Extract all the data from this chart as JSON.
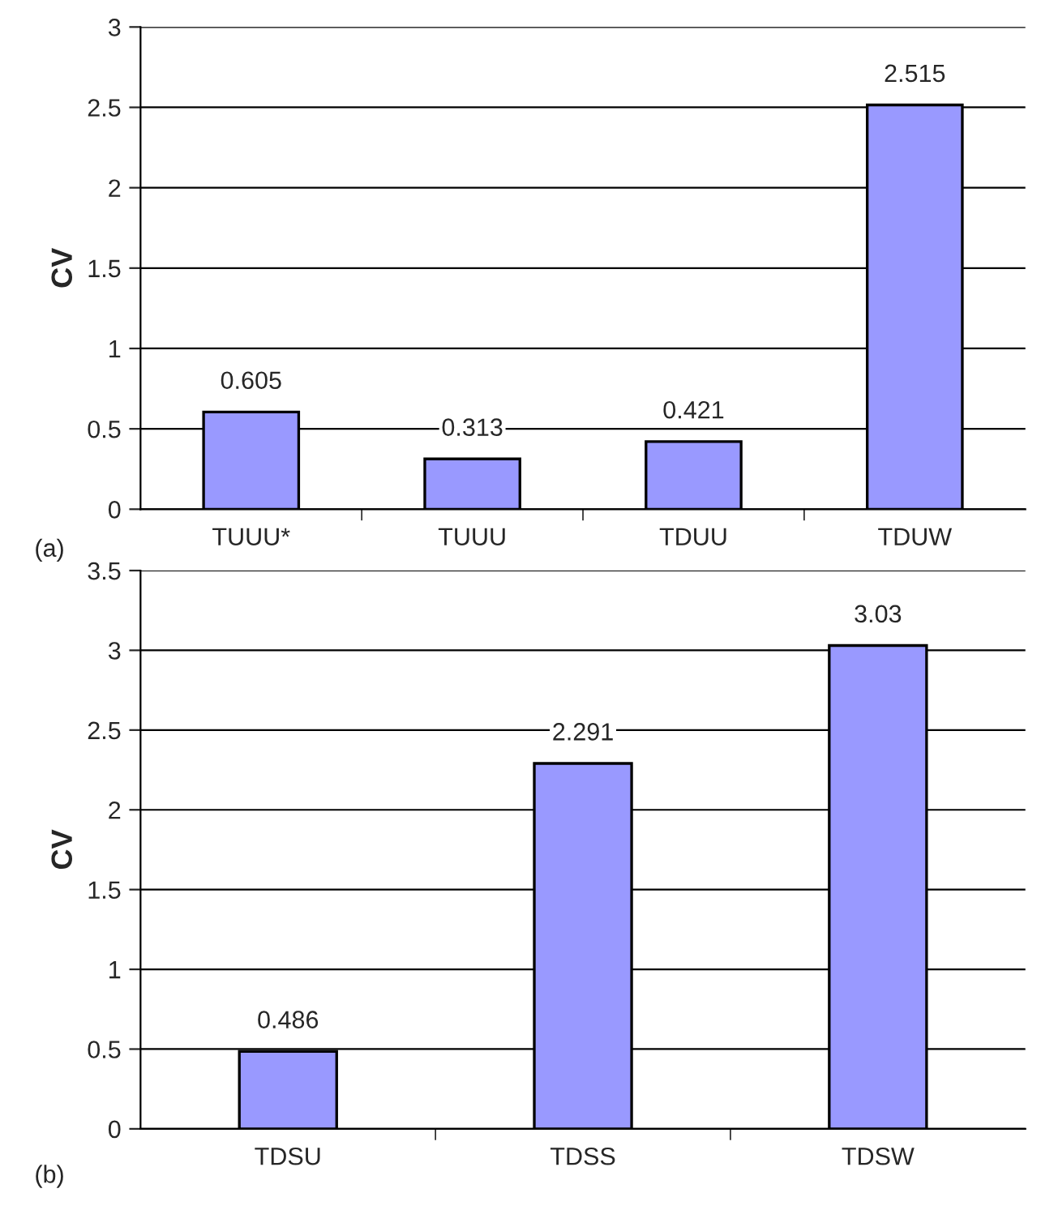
{
  "chart_data": [
    {
      "type": "bar",
      "ylabel": "CV",
      "categories": [
        "TUUU*",
        "TUUU",
        "TDUU",
        "TDUW"
      ],
      "values": [
        0.605,
        0.313,
        0.421,
        2.515
      ],
      "color": "#9999ff",
      "ylim": [
        0,
        3
      ],
      "yticks": [
        0,
        0.5,
        1,
        1.5,
        2,
        2.5,
        3
      ],
      "grid": "y",
      "data_labels": true,
      "legend": false,
      "annotations": [
        "(a)"
      ]
    },
    {
      "type": "bar",
      "ylabel": "CV",
      "categories": [
        "TDSU",
        "TDSS",
        "TDSW"
      ],
      "values": [
        0.486,
        2.291,
        3.03
      ],
      "color": "#9999ff",
      "ylim": [
        0,
        3.5
      ],
      "yticks": [
        0,
        0.5,
        1,
        1.5,
        2,
        2.5,
        3,
        3.5
      ],
      "grid": "y",
      "data_labels": true,
      "legend": false,
      "annotations": [
        "(b)"
      ]
    }
  ]
}
